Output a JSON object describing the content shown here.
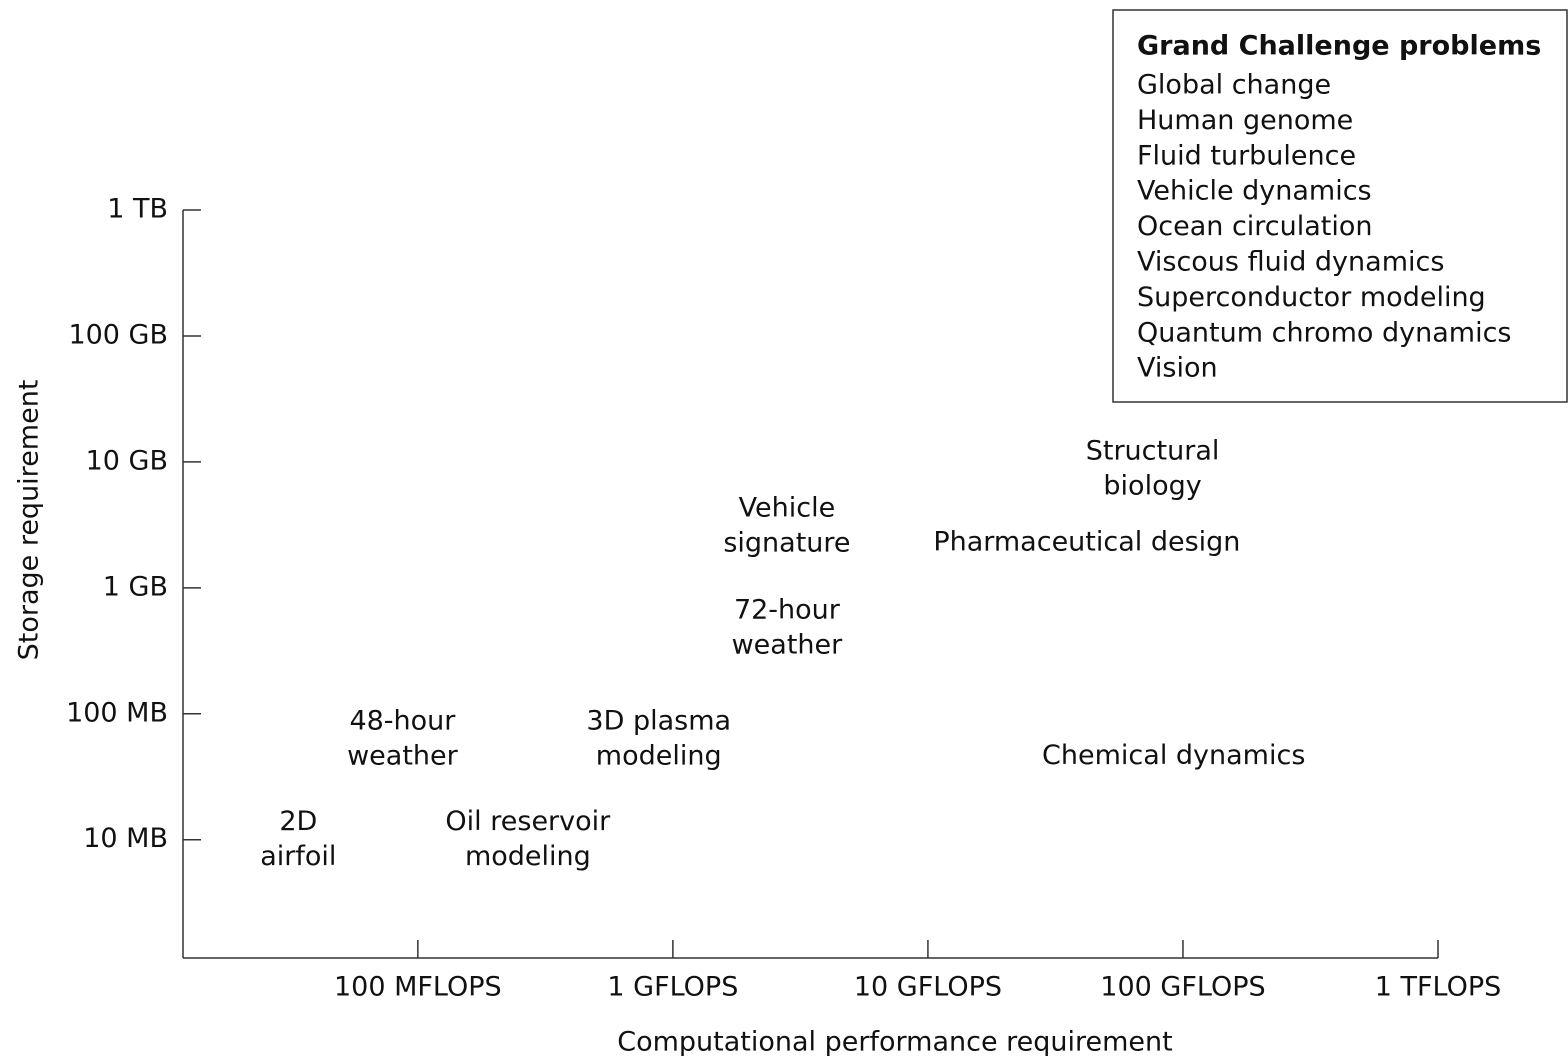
{
  "chart_data": {
    "type": "scatter",
    "xlabel": "Computational performance requirement",
    "ylabel": "Storage requirement",
    "xscale": "log",
    "yscale": "log",
    "xlim": [
      12000000,
      1000000000000
    ],
    "ylim": [
      1150000,
      1000000000000
    ],
    "xticks": [
      {
        "value": 100000000,
        "label": "100 MFLOPS"
      },
      {
        "value": 1000000000,
        "label": "1 GFLOPS"
      },
      {
        "value": 10000000000,
        "label": "10 GFLOPS"
      },
      {
        "value": 100000000000,
        "label": "100 GFLOPS"
      },
      {
        "value": 1000000000000,
        "label": "1 TFLOPS"
      }
    ],
    "yticks": [
      {
        "value": 10000000,
        "label": "10 MB"
      },
      {
        "value": 100000000,
        "label": "100 MB"
      },
      {
        "value": 1000000000,
        "label": "1 GB"
      },
      {
        "value": 10000000000,
        "label": "10 GB"
      },
      {
        "value": 100000000000,
        "label": "100 GB"
      },
      {
        "value": 1000000000000,
        "label": "1 TB"
      }
    ],
    "points": [
      {
        "label": [
          "2D",
          "airfoil"
        ],
        "x": 34000000,
        "y": 10000000
      },
      {
        "label": [
          "48-hour",
          "weather"
        ],
        "x": 87000000,
        "y": 63000000
      },
      {
        "label": [
          "Oil reservoir",
          "modeling"
        ],
        "x": 270000000,
        "y": 10000000
      },
      {
        "label": [
          "3D plasma",
          "modeling"
        ],
        "x": 880000000,
        "y": 63000000
      },
      {
        "label": [
          "Vehicle",
          "signature"
        ],
        "x": 2800000000,
        "y": 3100000000
      },
      {
        "label": [
          "72-hour",
          "weather"
        ],
        "x": 2800000000,
        "y": 480000000
      },
      {
        "label": [
          "Pharmaceutical design"
        ],
        "x": 42000000000,
        "y": 2300000000
      },
      {
        "label": [
          "Structural",
          "biology"
        ],
        "x": 76000000000,
        "y": 8800000000
      },
      {
        "label": [
          "Chemical dynamics"
        ],
        "x": 92000000000,
        "y": 46000000
      }
    ],
    "legend": {
      "title": "Grand Challenge problems",
      "items": [
        "Global change",
        "Human genome",
        "Fluid turbulence",
        "Vehicle dynamics",
        "Ocean circulation",
        "Viscous fluid dynamics",
        "Superconductor modeling",
        "Quantum chromo dynamics",
        "Vision"
      ]
    }
  }
}
